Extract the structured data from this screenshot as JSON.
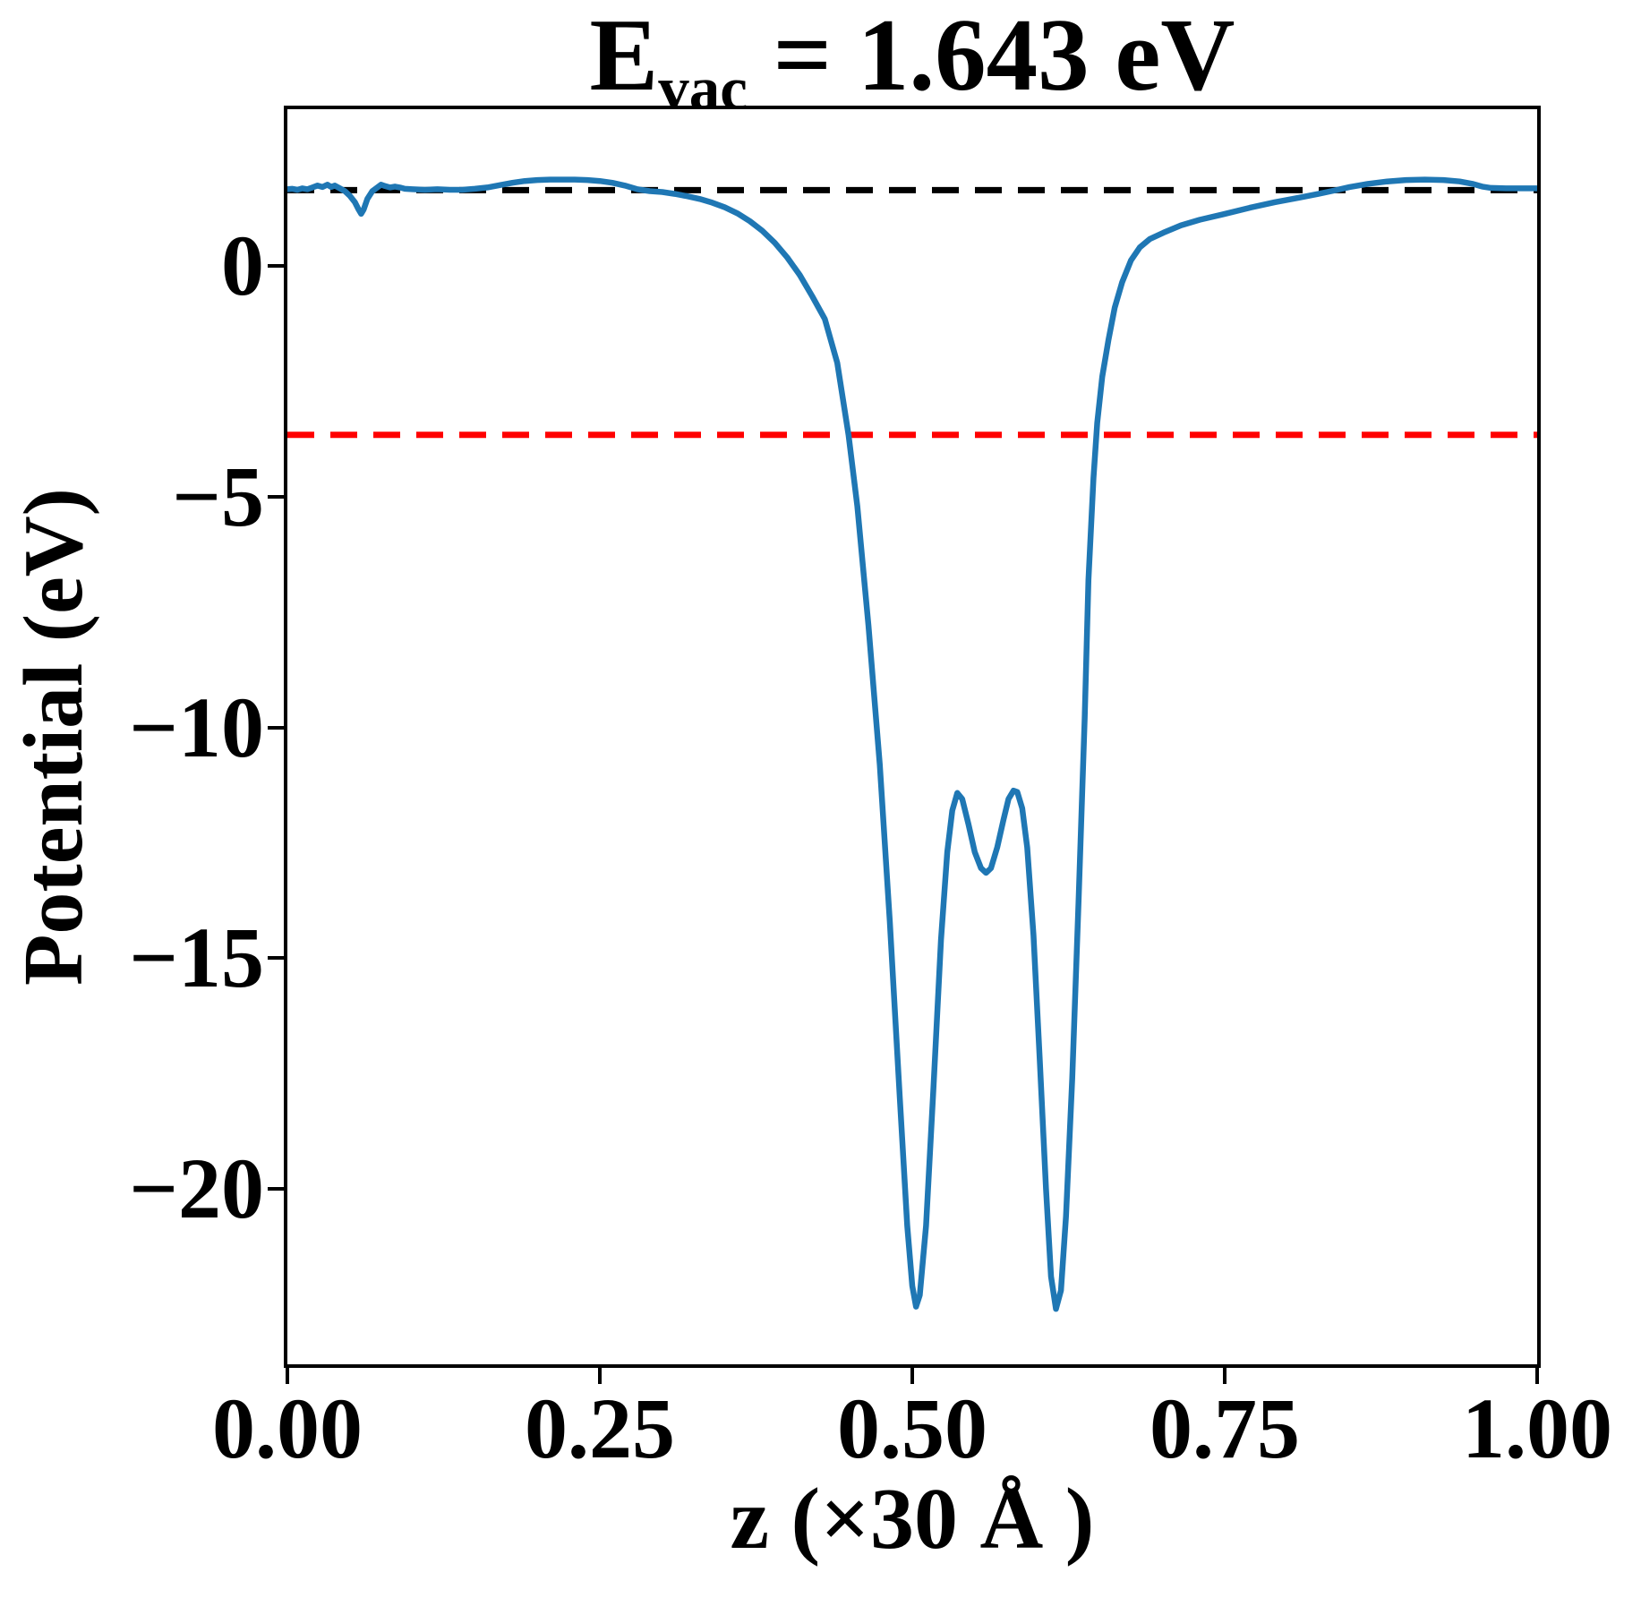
{
  "figure": {
    "background": "#ffffff",
    "title": {
      "prefix": "E",
      "sub": "vac",
      "suffix": " = 1.643 eV",
      "full": "E_vac = 1.643 eV"
    }
  },
  "chart_data": {
    "type": "line",
    "title": "E_vac = 1.643 eV",
    "xlabel": "z (×30 Å )",
    "ylabel": "Potential (eV)",
    "xlim": [
      0.0,
      1.0
    ],
    "ylim": [
      -23.8,
      3.395
    ],
    "grid": false,
    "legend": "none",
    "xtick_values": [
      0.0,
      0.25,
      0.5,
      0.75,
      1.0
    ],
    "xtick_labels": [
      "0.00",
      "0.25",
      "0.50",
      "0.75",
      "1.00"
    ],
    "ytick_values": [
      0,
      -5,
      -10,
      -15,
      -20
    ],
    "ytick_labels": [
      "0",
      "−5",
      "−10",
      "−15",
      "−20"
    ],
    "series": [
      {
        "name": "vacuum-level-line",
        "type": "hline",
        "y": 1.643,
        "color": "#000000",
        "style": "dashed",
        "width": 7
      },
      {
        "name": "fermi-level-line",
        "type": "hline",
        "y": -3.66,
        "color": "#ff0000",
        "style": "dashed",
        "width": 7
      },
      {
        "name": "planar-averaged-potential",
        "type": "curve",
        "color": "#1f77b4",
        "style": "solid",
        "width": 6.5,
        "points": [
          [
            0.0,
            1.66
          ],
          [
            0.004,
            1.67
          ],
          [
            0.008,
            1.65
          ],
          [
            0.012,
            1.68
          ],
          [
            0.016,
            1.66
          ],
          [
            0.02,
            1.7
          ],
          [
            0.024,
            1.74
          ],
          [
            0.028,
            1.71
          ],
          [
            0.032,
            1.76
          ],
          [
            0.035,
            1.71
          ],
          [
            0.038,
            1.74
          ],
          [
            0.042,
            1.68
          ],
          [
            0.046,
            1.62
          ],
          [
            0.05,
            1.52
          ],
          [
            0.054,
            1.38
          ],
          [
            0.057,
            1.22
          ],
          [
            0.059,
            1.13
          ],
          [
            0.061,
            1.22
          ],
          [
            0.064,
            1.45
          ],
          [
            0.068,
            1.62
          ],
          [
            0.072,
            1.7
          ],
          [
            0.075,
            1.76
          ],
          [
            0.078,
            1.73
          ],
          [
            0.082,
            1.7
          ],
          [
            0.086,
            1.72
          ],
          [
            0.09,
            1.7
          ],
          [
            0.094,
            1.67
          ],
          [
            0.1,
            1.66
          ],
          [
            0.11,
            1.65
          ],
          [
            0.12,
            1.66
          ],
          [
            0.13,
            1.65
          ],
          [
            0.14,
            1.65
          ],
          [
            0.15,
            1.67
          ],
          [
            0.16,
            1.7
          ],
          [
            0.17,
            1.75
          ],
          [
            0.18,
            1.8
          ],
          [
            0.19,
            1.84
          ],
          [
            0.2,
            1.86
          ],
          [
            0.21,
            1.87
          ],
          [
            0.22,
            1.87
          ],
          [
            0.23,
            1.87
          ],
          [
            0.24,
            1.86
          ],
          [
            0.25,
            1.84
          ],
          [
            0.26,
            1.8
          ],
          [
            0.27,
            1.74
          ],
          [
            0.28,
            1.66
          ],
          [
            0.29,
            1.62
          ],
          [
            0.3,
            1.6
          ],
          [
            0.31,
            1.56
          ],
          [
            0.32,
            1.51
          ],
          [
            0.33,
            1.45
          ],
          [
            0.34,
            1.37
          ],
          [
            0.35,
            1.27
          ],
          [
            0.36,
            1.14
          ],
          [
            0.37,
            0.97
          ],
          [
            0.38,
            0.76
          ],
          [
            0.39,
            0.5
          ],
          [
            0.4,
            0.18
          ],
          [
            0.41,
            -0.2
          ],
          [
            0.42,
            -0.66
          ],
          [
            0.43,
            -1.15
          ],
          [
            0.44,
            -2.1
          ],
          [
            0.449,
            -3.66
          ],
          [
            0.456,
            -5.2
          ],
          [
            0.465,
            -7.8
          ],
          [
            0.474,
            -10.8
          ],
          [
            0.482,
            -14.2
          ],
          [
            0.49,
            -18.0
          ],
          [
            0.496,
            -20.8
          ],
          [
            0.5,
            -22.1
          ],
          [
            0.503,
            -22.55
          ],
          [
            0.506,
            -22.3
          ],
          [
            0.511,
            -20.8
          ],
          [
            0.517,
            -17.8
          ],
          [
            0.523,
            -14.6
          ],
          [
            0.528,
            -12.7
          ],
          [
            0.532,
            -11.8
          ],
          [
            0.536,
            -11.42
          ],
          [
            0.54,
            -11.55
          ],
          [
            0.545,
            -12.1
          ],
          [
            0.55,
            -12.7
          ],
          [
            0.555,
            -13.05
          ],
          [
            0.559,
            -13.15
          ],
          [
            0.563,
            -13.05
          ],
          [
            0.568,
            -12.6
          ],
          [
            0.573,
            -12.0
          ],
          [
            0.577,
            -11.55
          ],
          [
            0.581,
            -11.37
          ],
          [
            0.584,
            -11.4
          ],
          [
            0.588,
            -11.75
          ],
          [
            0.592,
            -12.6
          ],
          [
            0.597,
            -14.5
          ],
          [
            0.602,
            -17.2
          ],
          [
            0.607,
            -20.0
          ],
          [
            0.611,
            -21.9
          ],
          [
            0.615,
            -22.6
          ],
          [
            0.619,
            -22.2
          ],
          [
            0.623,
            -20.6
          ],
          [
            0.628,
            -17.6
          ],
          [
            0.633,
            -13.8
          ],
          [
            0.638,
            -9.8
          ],
          [
            0.641,
            -6.8
          ],
          [
            0.645,
            -4.6
          ],
          [
            0.648,
            -3.4
          ],
          [
            0.652,
            -2.4
          ],
          [
            0.657,
            -1.6
          ],
          [
            0.662,
            -0.9
          ],
          [
            0.668,
            -0.35
          ],
          [
            0.675,
            0.12
          ],
          [
            0.682,
            0.4
          ],
          [
            0.69,
            0.58
          ],
          [
            0.701,
            0.72
          ],
          [
            0.715,
            0.88
          ],
          [
            0.73,
            1.0
          ],
          [
            0.749,
            1.12
          ],
          [
            0.77,
            1.26
          ],
          [
            0.79,
            1.38
          ],
          [
            0.81,
            1.48
          ],
          [
            0.825,
            1.56
          ],
          [
            0.837,
            1.63
          ],
          [
            0.85,
            1.71
          ],
          [
            0.865,
            1.78
          ],
          [
            0.88,
            1.83
          ],
          [
            0.895,
            1.86
          ],
          [
            0.91,
            1.87
          ],
          [
            0.925,
            1.86
          ],
          [
            0.938,
            1.83
          ],
          [
            0.948,
            1.78
          ],
          [
            0.956,
            1.72
          ],
          [
            0.963,
            1.69
          ],
          [
            0.975,
            1.68
          ],
          [
            0.988,
            1.68
          ],
          [
            1.0,
            1.68
          ]
        ]
      }
    ]
  }
}
